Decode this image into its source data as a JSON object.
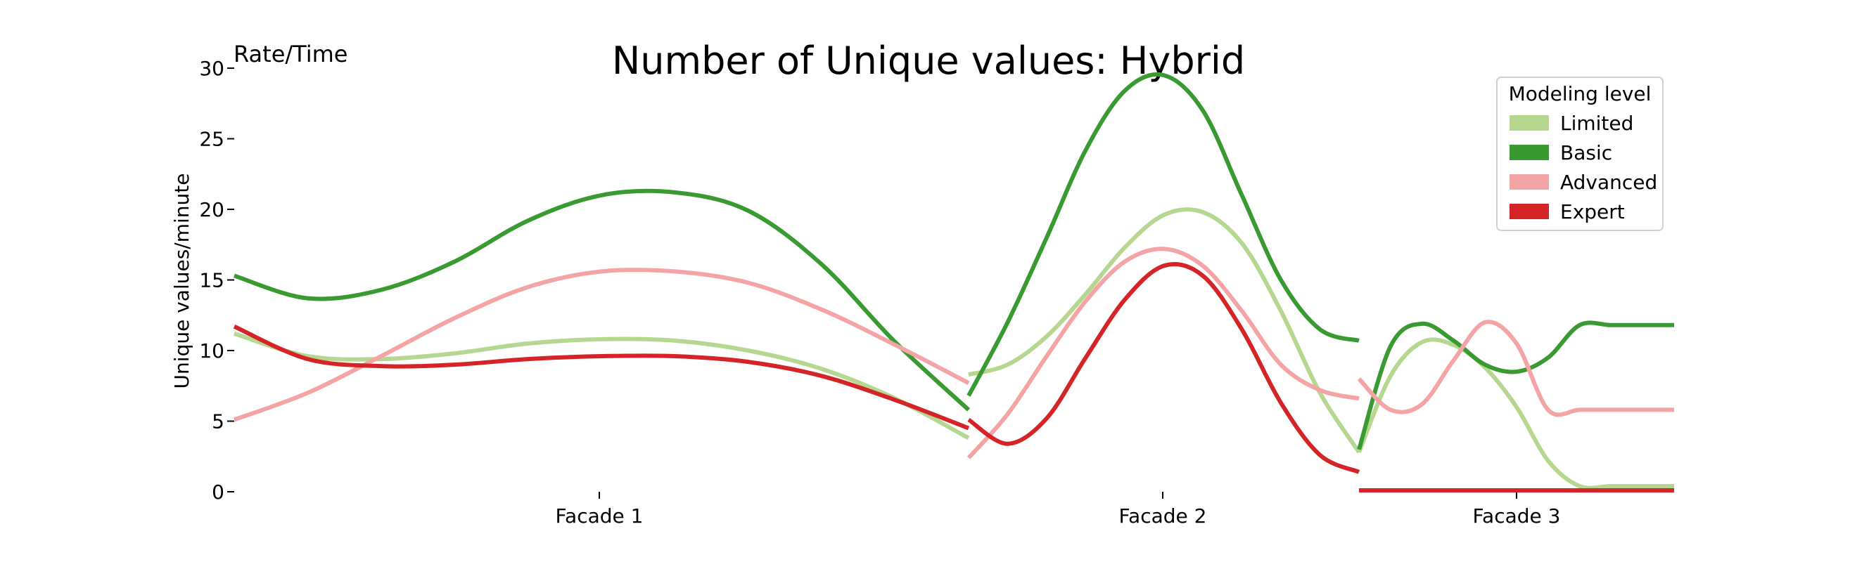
{
  "chart_data": {
    "type": "line",
    "title": "Number of Unique values: Hybrid",
    "corner_label": "Rate/Time",
    "ylabel": "Unique values/minute",
    "xlabel": "",
    "ylim": [
      0,
      30
    ],
    "yticks": [
      0,
      5,
      10,
      15,
      20,
      25,
      30
    ],
    "categories": [
      "Facade 1",
      "Facade 2",
      "Facade 3"
    ],
    "legend": {
      "title": "Modeling level",
      "placement": "top-right"
    },
    "grid": false,
    "segments": [
      {
        "name": "Facade 1",
        "x": [
          0,
          1,
          2,
          3,
          4,
          5,
          6,
          7,
          8,
          9,
          10
        ]
      },
      {
        "name": "Facade 2",
        "x": [
          0,
          1,
          2,
          3,
          4,
          5,
          6,
          7,
          8,
          9,
          10
        ]
      },
      {
        "name": "Facade 3",
        "x": [
          0,
          1,
          2,
          3,
          4,
          5,
          6,
          7,
          8,
          9,
          10
        ]
      }
    ],
    "series": [
      {
        "name": "Limited",
        "color": "#b5d78f",
        "segments": [
          [
            11.2,
            9.6,
            9.4,
            9.8,
            10.5,
            10.8,
            10.7,
            10.0,
            8.7,
            6.6,
            3.8
          ],
          [
            8.3,
            9.0,
            11.0,
            14.0,
            17.3,
            19.6,
            19.8,
            17.6,
            12.8,
            7.0,
            2.8
          ],
          [
            2.8,
            8.2,
            10.6,
            10.4,
            8.8,
            6.0,
            2.2,
            0.4,
            0.4,
            0.4,
            0.4
          ]
        ]
      },
      {
        "name": "Basic",
        "color": "#3a9a32",
        "segments": [
          [
            15.3,
            13.7,
            14.3,
            16.3,
            19.2,
            21.0,
            21.2,
            19.9,
            16.1,
            10.6,
            5.8
          ],
          [
            6.8,
            12.0,
            18.0,
            24.2,
            28.4,
            29.5,
            27.0,
            21.0,
            15.0,
            11.5,
            10.7
          ],
          [
            3.0,
            10.3,
            11.9,
            10.7,
            9.0,
            8.5,
            9.5,
            11.8,
            11.8,
            11.8,
            11.8
          ]
        ]
      },
      {
        "name": "Advanced",
        "color": "#f4a4a4",
        "segments": [
          [
            5.1,
            7.0,
            9.6,
            12.3,
            14.5,
            15.6,
            15.6,
            14.8,
            12.9,
            10.4,
            7.7
          ],
          [
            2.4,
            5.5,
            9.6,
            13.5,
            16.3,
            17.2,
            16.0,
            12.8,
            9.0,
            7.2,
            6.6
          ],
          [
            8.0,
            5.8,
            6.2,
            9.3,
            12.0,
            10.5,
            5.8,
            5.8,
            5.8,
            5.8,
            5.8
          ]
        ]
      },
      {
        "name": "Expert",
        "color": "#d42427",
        "segments": [
          [
            11.7,
            9.4,
            8.9,
            9.0,
            9.4,
            9.6,
            9.6,
            9.2,
            8.2,
            6.5,
            4.5
          ],
          [
            5.1,
            3.4,
            5.2,
            9.5,
            13.6,
            16.0,
            15.3,
            11.5,
            6.3,
            2.6,
            1.4
          ],
          [
            0.1,
            0.1,
            0.1,
            0.1,
            0.1,
            0.1,
            0.1,
            0.1,
            0.1,
            0.1,
            0.1
          ]
        ]
      }
    ]
  }
}
